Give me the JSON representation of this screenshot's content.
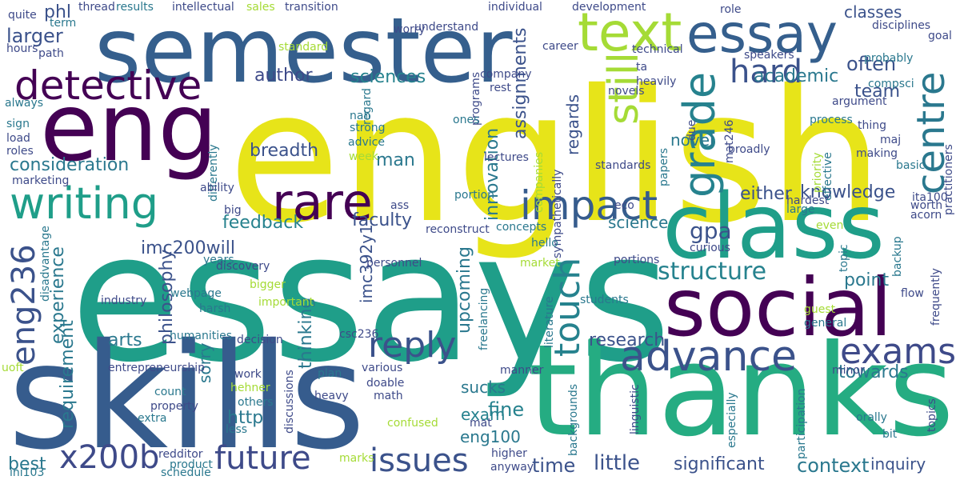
{
  "words": [
    {
      "text": "english",
      "color": "#e7e419"
    },
    {
      "text": "essays",
      "color": "#1f9e89"
    },
    {
      "text": "skills",
      "color": "#365c8d"
    },
    {
      "text": "thanks",
      "color": "#25ac82"
    },
    {
      "text": "semester",
      "color": "#355f8d"
    },
    {
      "text": "eng",
      "color": "#440154"
    },
    {
      "text": "class",
      "color": "#1f9e89"
    },
    {
      "text": "social",
      "color": "#440154"
    },
    {
      "text": "text",
      "color": "#a5db36"
    },
    {
      "text": "essay",
      "color": "#355f8d"
    },
    {
      "text": "detective",
      "color": "#440154"
    },
    {
      "text": "writing",
      "color": "#1f9e89"
    },
    {
      "text": "rare",
      "color": "#440154"
    },
    {
      "text": "impact",
      "color": "#365c8d"
    },
    {
      "text": "advance",
      "color": "#3b528b"
    },
    {
      "text": "exams",
      "color": "#3e4a89"
    },
    {
      "text": "reply",
      "color": "#3b528b"
    },
    {
      "text": "future",
      "color": "#3e4a89"
    },
    {
      "text": "issues",
      "color": "#3b528b"
    },
    {
      "text": "x200b",
      "color": "#3e4a89"
    },
    {
      "text": "grade",
      "color": "#26828e"
    },
    {
      "text": "still",
      "color": "#a5db36"
    },
    {
      "text": "centre",
      "color": "#2a788e"
    },
    {
      "text": "hard",
      "color": "#3b528b"
    },
    {
      "text": "touch",
      "color": "#26828e"
    },
    {
      "text": "eng236",
      "color": "#3b528b"
    },
    {
      "text": "structure",
      "color": "#26828e"
    },
    {
      "text": "gpa",
      "color": "#3b528b"
    },
    {
      "text": "larger",
      "color": "#3b528b"
    },
    {
      "text": "knowledge",
      "color": "#3b528b"
    },
    {
      "text": "sciences",
      "color": "#26828e"
    },
    {
      "text": "author",
      "color": "#3e4a89"
    },
    {
      "text": "academic",
      "color": "#2a788e"
    },
    {
      "text": "classes",
      "color": "#3b528b"
    },
    {
      "text": "often",
      "color": "#3b528b"
    },
    {
      "text": "team",
      "color": "#3b528b"
    },
    {
      "text": "consideration",
      "color": "#2a788e"
    },
    {
      "text": "breadth",
      "color": "#3b528b"
    },
    {
      "text": "feedback",
      "color": "#26828e"
    },
    {
      "text": "faculty",
      "color": "#3b528b"
    },
    {
      "text": "either",
      "color": "#3b528b"
    },
    {
      "text": "science",
      "color": "#2a788e"
    },
    {
      "text": "imc200will",
      "color": "#3b528b"
    },
    {
      "text": "experience",
      "color": "#2a788e"
    },
    {
      "text": "philosophy",
      "color": "#3b528b"
    },
    {
      "text": "requirement",
      "color": "#2a788e"
    },
    {
      "text": "arts",
      "color": "#2a788e"
    },
    {
      "text": "thinking",
      "color": "#2a788e"
    },
    {
      "text": "sorry",
      "color": "#2a788e"
    },
    {
      "text": "http",
      "color": "#2a788e"
    },
    {
      "text": "sucks",
      "color": "#2a788e"
    },
    {
      "text": "fine",
      "color": "#26828e"
    },
    {
      "text": "exam",
      "color": "#26828e"
    },
    {
      "text": "eng100",
      "color": "#2a788e"
    },
    {
      "text": "time",
      "color": "#3b528b"
    },
    {
      "text": "little",
      "color": "#3b528b"
    },
    {
      "text": "significant",
      "color": "#3b528b"
    },
    {
      "text": "context",
      "color": "#2a788e"
    },
    {
      "text": "inquiry",
      "color": "#3b528b"
    },
    {
      "text": "towards",
      "color": "#2a788e"
    },
    {
      "text": "research",
      "color": "#3b528b"
    },
    {
      "text": "upcoming",
      "color": "#2a788e"
    },
    {
      "text": "imc392y1",
      "color": "#3b528b"
    },
    {
      "text": "assignments",
      "color": "#3b528b"
    },
    {
      "text": "innovation",
      "color": "#2a788e"
    },
    {
      "text": "man",
      "color": "#2a788e"
    },
    {
      "text": "novel",
      "color": "#2a788e"
    },
    {
      "text": "regards",
      "color": "#3b528b"
    },
    {
      "text": "point",
      "color": "#2a788e"
    },
    {
      "text": "best",
      "color": "#2a788e"
    },
    {
      "text": "phl",
      "color": "#3b528b"
    },
    {
      "text": "quite",
      "color": "#3e4a89"
    },
    {
      "text": "term",
      "color": "#2a788e"
    },
    {
      "text": "hours",
      "color": "#3e4a89"
    },
    {
      "text": "path",
      "color": "#3e4a89"
    },
    {
      "text": "thread",
      "color": "#3e4a89"
    },
    {
      "text": "results",
      "color": "#2a788e"
    },
    {
      "text": "intellectual",
      "color": "#3e4a89"
    },
    {
      "text": "sales",
      "color": "#a5db36"
    },
    {
      "text": "transition",
      "color": "#3e4a89"
    },
    {
      "text": "understand",
      "color": "#3e4a89"
    },
    {
      "text": "programs",
      "color": "#3e4a89"
    },
    {
      "text": "individual",
      "color": "#3e4a89"
    },
    {
      "text": "development",
      "color": "#3e4a89"
    },
    {
      "text": "role",
      "color": "#3e4a89"
    },
    {
      "text": "disciplines",
      "color": "#3e4a89"
    },
    {
      "text": "goal",
      "color": "#3e4a89"
    },
    {
      "text": "worry",
      "color": "#3e4a89"
    },
    {
      "text": "career",
      "color": "#3e4a89"
    },
    {
      "text": "technical",
      "color": "#3e4a89"
    },
    {
      "text": "speakers",
      "color": "#3e4a89"
    },
    {
      "text": "standard",
      "color": "#a5db36"
    },
    {
      "text": "regard",
      "color": "#2a788e"
    },
    {
      "text": "company",
      "color": "#3e4a89"
    },
    {
      "text": "novels",
      "color": "#3e4a89"
    },
    {
      "text": "ta",
      "color": "#3e4a89"
    },
    {
      "text": "probably",
      "color": "#2a788e"
    },
    {
      "text": "compsci",
      "color": "#2a788e"
    },
    {
      "text": "heavily",
      "color": "#3e4a89"
    },
    {
      "text": "argument",
      "color": "#3e4a89"
    },
    {
      "text": "always",
      "color": "#2a788e"
    },
    {
      "text": "rest",
      "color": "#3e4a89"
    },
    {
      "text": "mat246",
      "color": "#3e4a89"
    },
    {
      "text": "nah",
      "color": "#2a788e"
    },
    {
      "text": "strong",
      "color": "#2a788e"
    },
    {
      "text": "advice",
      "color": "#2a788e"
    },
    {
      "text": "ones",
      "color": "#2a788e"
    },
    {
      "text": "companies",
      "color": "#a5db36"
    },
    {
      "text": "sympathetically",
      "color": "#3e4a89"
    },
    {
      "text": "papers",
      "color": "#2a788e"
    },
    {
      "text": "due",
      "color": "#3e4a89"
    },
    {
      "text": "process",
      "color": "#2a788e"
    },
    {
      "text": "thing",
      "color": "#3e4a89"
    },
    {
      "text": "maj",
      "color": "#3e4a89"
    },
    {
      "text": "practitioners",
      "color": "#3e4a89"
    },
    {
      "text": "sign",
      "color": "#2a788e"
    },
    {
      "text": "load",
      "color": "#3e4a89"
    },
    {
      "text": "roles",
      "color": "#3e4a89"
    },
    {
      "text": "marketing",
      "color": "#3e4a89"
    },
    {
      "text": "differently",
      "color": "#2a788e"
    },
    {
      "text": "week",
      "color": "#a5db36"
    },
    {
      "text": "lectures",
      "color": "#3e4a89"
    },
    {
      "text": "standards",
      "color": "#3e4a89"
    },
    {
      "text": "broadly",
      "color": "#3e4a89"
    },
    {
      "text": "priority",
      "color": "#a5db36"
    },
    {
      "text": "effective",
      "color": "#2a788e"
    },
    {
      "text": "making",
      "color": "#3e4a89"
    },
    {
      "text": "basic",
      "color": "#2a788e"
    },
    {
      "text": "ability",
      "color": "#3e4a89"
    },
    {
      "text": "portion",
      "color": "#2a788e"
    },
    {
      "text": "eco",
      "color": "#3e4a89"
    },
    {
      "text": "ita100",
      "color": "#3e4a89"
    },
    {
      "text": "hardest",
      "color": "#3e4a89"
    },
    {
      "text": "large",
      "color": "#2a788e"
    },
    {
      "text": "worth",
      "color": "#3e4a89"
    },
    {
      "text": "acorn",
      "color": "#3e4a89"
    },
    {
      "text": "big",
      "color": "#3e4a89"
    },
    {
      "text": "ass",
      "color": "#3e4a89"
    },
    {
      "text": "even",
      "color": "#a5db36"
    },
    {
      "text": "disadvantage",
      "color": "#2a788e"
    },
    {
      "text": "reconstruct",
      "color": "#3e4a89"
    },
    {
      "text": "concepts",
      "color": "#2a788e"
    },
    {
      "text": "hello",
      "color": "#2a788e"
    },
    {
      "text": "curious",
      "color": "#3e4a89"
    },
    {
      "text": "topic",
      "color": "#2a788e"
    },
    {
      "text": "backup",
      "color": "#2a788e"
    },
    {
      "text": "years",
      "color": "#2a788e"
    },
    {
      "text": "discovery",
      "color": "#3e4a89"
    },
    {
      "text": "personnel",
      "color": "#3e4a89"
    },
    {
      "text": "market",
      "color": "#a5db36"
    },
    {
      "text": "portions",
      "color": "#3e4a89"
    },
    {
      "text": "webpage",
      "color": "#2a788e"
    },
    {
      "text": "bigger",
      "color": "#a5db36"
    },
    {
      "text": "industry",
      "color": "#3e4a89"
    },
    {
      "text": "important",
      "color": "#a5db36"
    },
    {
      "text": "students",
      "color": "#2a788e"
    },
    {
      "text": "flow",
      "color": "#3e4a89"
    },
    {
      "text": "frequently",
      "color": "#3e4a89"
    },
    {
      "text": "harsh",
      "color": "#2a788e"
    },
    {
      "text": "humanities",
      "color": "#2a788e"
    },
    {
      "text": "decision",
      "color": "#3e4a89"
    },
    {
      "text": "csc236",
      "color": "#3e4a89"
    },
    {
      "text": "freelancing",
      "color": "#2a788e"
    },
    {
      "text": "literature",
      "color": "#2a788e"
    },
    {
      "text": "guest",
      "color": "#a5db36"
    },
    {
      "text": "general",
      "color": "#2a788e"
    },
    {
      "text": "entrepreneurship",
      "color": "#3e4a89"
    },
    {
      "text": "various",
      "color": "#3e4a89"
    },
    {
      "text": "manner",
      "color": "#3e4a89"
    },
    {
      "text": "uoft",
      "color": "#a5db36"
    },
    {
      "text": "work",
      "color": "#3e4a89"
    },
    {
      "text": "hehner",
      "color": "#a5db36"
    },
    {
      "text": "plan",
      "color": "#2a788e"
    },
    {
      "text": "discussions",
      "color": "#3e4a89"
    },
    {
      "text": "doable",
      "color": "#3e4a89"
    },
    {
      "text": "math",
      "color": "#3e4a89"
    },
    {
      "text": "minor",
      "color": "#3e4a89"
    },
    {
      "text": "count",
      "color": "#2a788e"
    },
    {
      "text": "heavy",
      "color": "#3e4a89"
    },
    {
      "text": "property",
      "color": "#3e4a89"
    },
    {
      "text": "others",
      "color": "#2a788e"
    },
    {
      "text": "extra",
      "color": "#2a788e"
    },
    {
      "text": "less",
      "color": "#2a788e"
    },
    {
      "text": "confused",
      "color": "#a5db36"
    },
    {
      "text": "backgrounds",
      "color": "#2a788e"
    },
    {
      "text": "linguistic",
      "color": "#3e4a89"
    },
    {
      "text": "especially",
      "color": "#2a788e"
    },
    {
      "text": "participation",
      "color": "#2a788e"
    },
    {
      "text": "orally",
      "color": "#2a788e"
    },
    {
      "text": "topics",
      "color": "#3e4a89"
    },
    {
      "text": "bit",
      "color": "#2a788e"
    },
    {
      "text": "mat",
      "color": "#3e4a89"
    },
    {
      "text": "redditor",
      "color": "#3e4a89"
    },
    {
      "text": "product",
      "color": "#2a788e"
    },
    {
      "text": "higher",
      "color": "#3e4a89"
    },
    {
      "text": "marks",
      "color": "#a5db36"
    },
    {
      "text": "anyway",
      "color": "#3e4a89"
    },
    {
      "text": "ini103",
      "color": "#2a788e"
    },
    {
      "text": "schedule",
      "color": "#2a788e"
    }
  ]
}
